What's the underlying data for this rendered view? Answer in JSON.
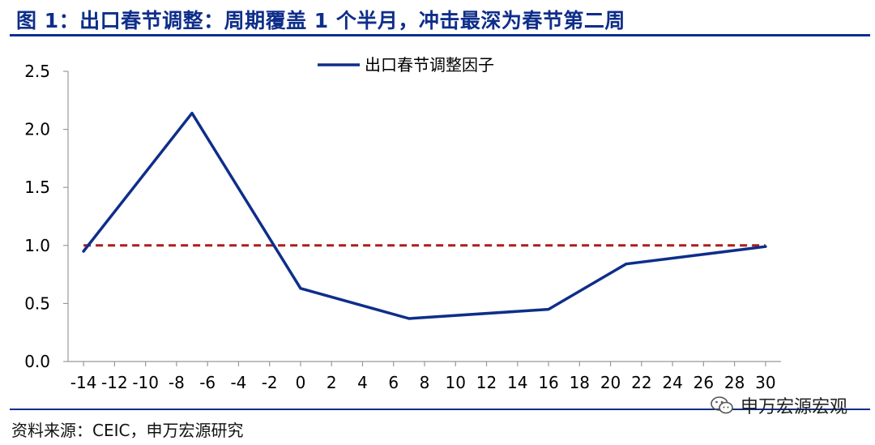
{
  "header": {
    "title": "图 1：出口春节调整：周期覆盖 1 个半月，冲击最深为春节第二周"
  },
  "footer": {
    "source": "资料来源：CEIC，申万宏源研究",
    "brand": "申万宏源宏观",
    "brand_icon": "wechat-icon"
  },
  "chart_data": {
    "type": "line",
    "legend_position": "top-center",
    "grid": false,
    "xlim": [
      -15,
      31
    ],
    "ylim": [
      0,
      2.5
    ],
    "x_ticks": [
      -14,
      -12,
      -10,
      -8,
      -6,
      -4,
      -2,
      0,
      2,
      4,
      6,
      8,
      10,
      12,
      14,
      16,
      18,
      20,
      22,
      24,
      26,
      28,
      30
    ],
    "x_tick_labels": [
      "-14",
      "-12",
      "-10",
      "-8",
      "-6",
      "-4",
      "-2",
      "0",
      "2",
      "4",
      "6",
      "8",
      "10",
      "12",
      "14",
      "16",
      "18",
      "20",
      "22",
      "24",
      "26",
      "28",
      "30"
    ],
    "y_ticks": [
      0,
      0.5,
      1.0,
      1.5,
      2.0,
      2.5
    ],
    "y_tick_labels": [
      "0.0",
      "0.5",
      "1.0",
      "1.5",
      "2.0",
      "2.5"
    ],
    "series": [
      {
        "name": "出口春节调整因子",
        "color": "#0e2e8a",
        "x": [
          -14,
          -7,
          0,
          7,
          16,
          21,
          30
        ],
        "y": [
          0.95,
          2.14,
          0.63,
          0.37,
          0.45,
          0.84,
          0.99
        ]
      }
    ],
    "reference_line": {
      "y": 1.0,
      "x_range": [
        -14,
        30
      ],
      "color": "#b01c1c",
      "style": "dashed"
    }
  }
}
